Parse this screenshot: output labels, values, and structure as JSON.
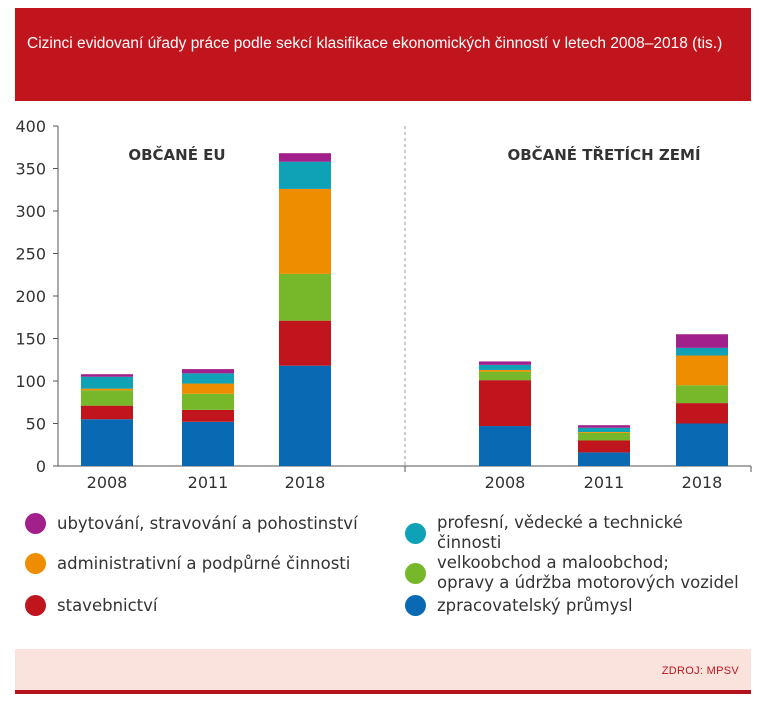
{
  "header": {
    "title": "Cizinci evidovaní úřady práce podle sekcí klasifikace ekonomických činností v letech 2008–2018 (tis.)"
  },
  "footer": {
    "source": "ZDROJ: MPSV"
  },
  "colors": {
    "header_bg": "#c1151d",
    "footer_bg": "#fbe3dd",
    "footer_line": "#b3141c"
  },
  "chart_data": {
    "type": "bar",
    "stacked": true,
    "title": "Cizinci evidovaní úřady práce podle sekcí klasifikace ekonomických činností v letech 2008–2018 (tis.)",
    "ylim": [
      0,
      400
    ],
    "yticks": [
      0,
      50,
      100,
      150,
      200,
      250,
      300,
      350,
      400
    ],
    "grid": false,
    "legend_position": "bottom",
    "groups": [
      {
        "label": "OBČANÉ EU",
        "categories": [
          "2008",
          "2011",
          "2018"
        ]
      },
      {
        "label": "OBČANÉ TŘETÍCH ZEMÍ",
        "categories": [
          "2008",
          "2011",
          "2018"
        ]
      }
    ],
    "series": [
      {
        "name": "zpracovatelský průmysl",
        "color": "#0a69b3",
        "values": [
          [
            55,
            52,
            118
          ],
          [
            47,
            16,
            50
          ]
        ]
      },
      {
        "name": "stavebnictví",
        "color": "#c1151d",
        "values": [
          [
            16,
            14,
            53
          ],
          [
            54,
            14,
            24
          ]
        ]
      },
      {
        "name": "velkoobchod a maloobchod;\nopravy a údržba motorových vozidel",
        "color": "#77b82a",
        "values": [
          [
            18,
            19,
            55
          ],
          [
            10,
            9,
            21
          ]
        ]
      },
      {
        "name": "administrativní a podpůrné činnosti",
        "color": "#ef8d00",
        "values": [
          [
            2,
            12,
            100
          ],
          [
            2,
            1,
            35
          ]
        ]
      },
      {
        "name": "profesní, vědecké a technické činnosti",
        "color": "#0fa2b7",
        "values": [
          [
            14,
            12,
            32
          ],
          [
            6,
            5,
            9
          ]
        ]
      },
      {
        "name": "ubytování, stravování a pohostinství",
        "color": "#a2208c",
        "values": [
          [
            3,
            5,
            10
          ],
          [
            4,
            3,
            16
          ]
        ]
      }
    ],
    "legend_order": [
      5,
      4,
      3,
      2,
      1,
      0
    ]
  }
}
